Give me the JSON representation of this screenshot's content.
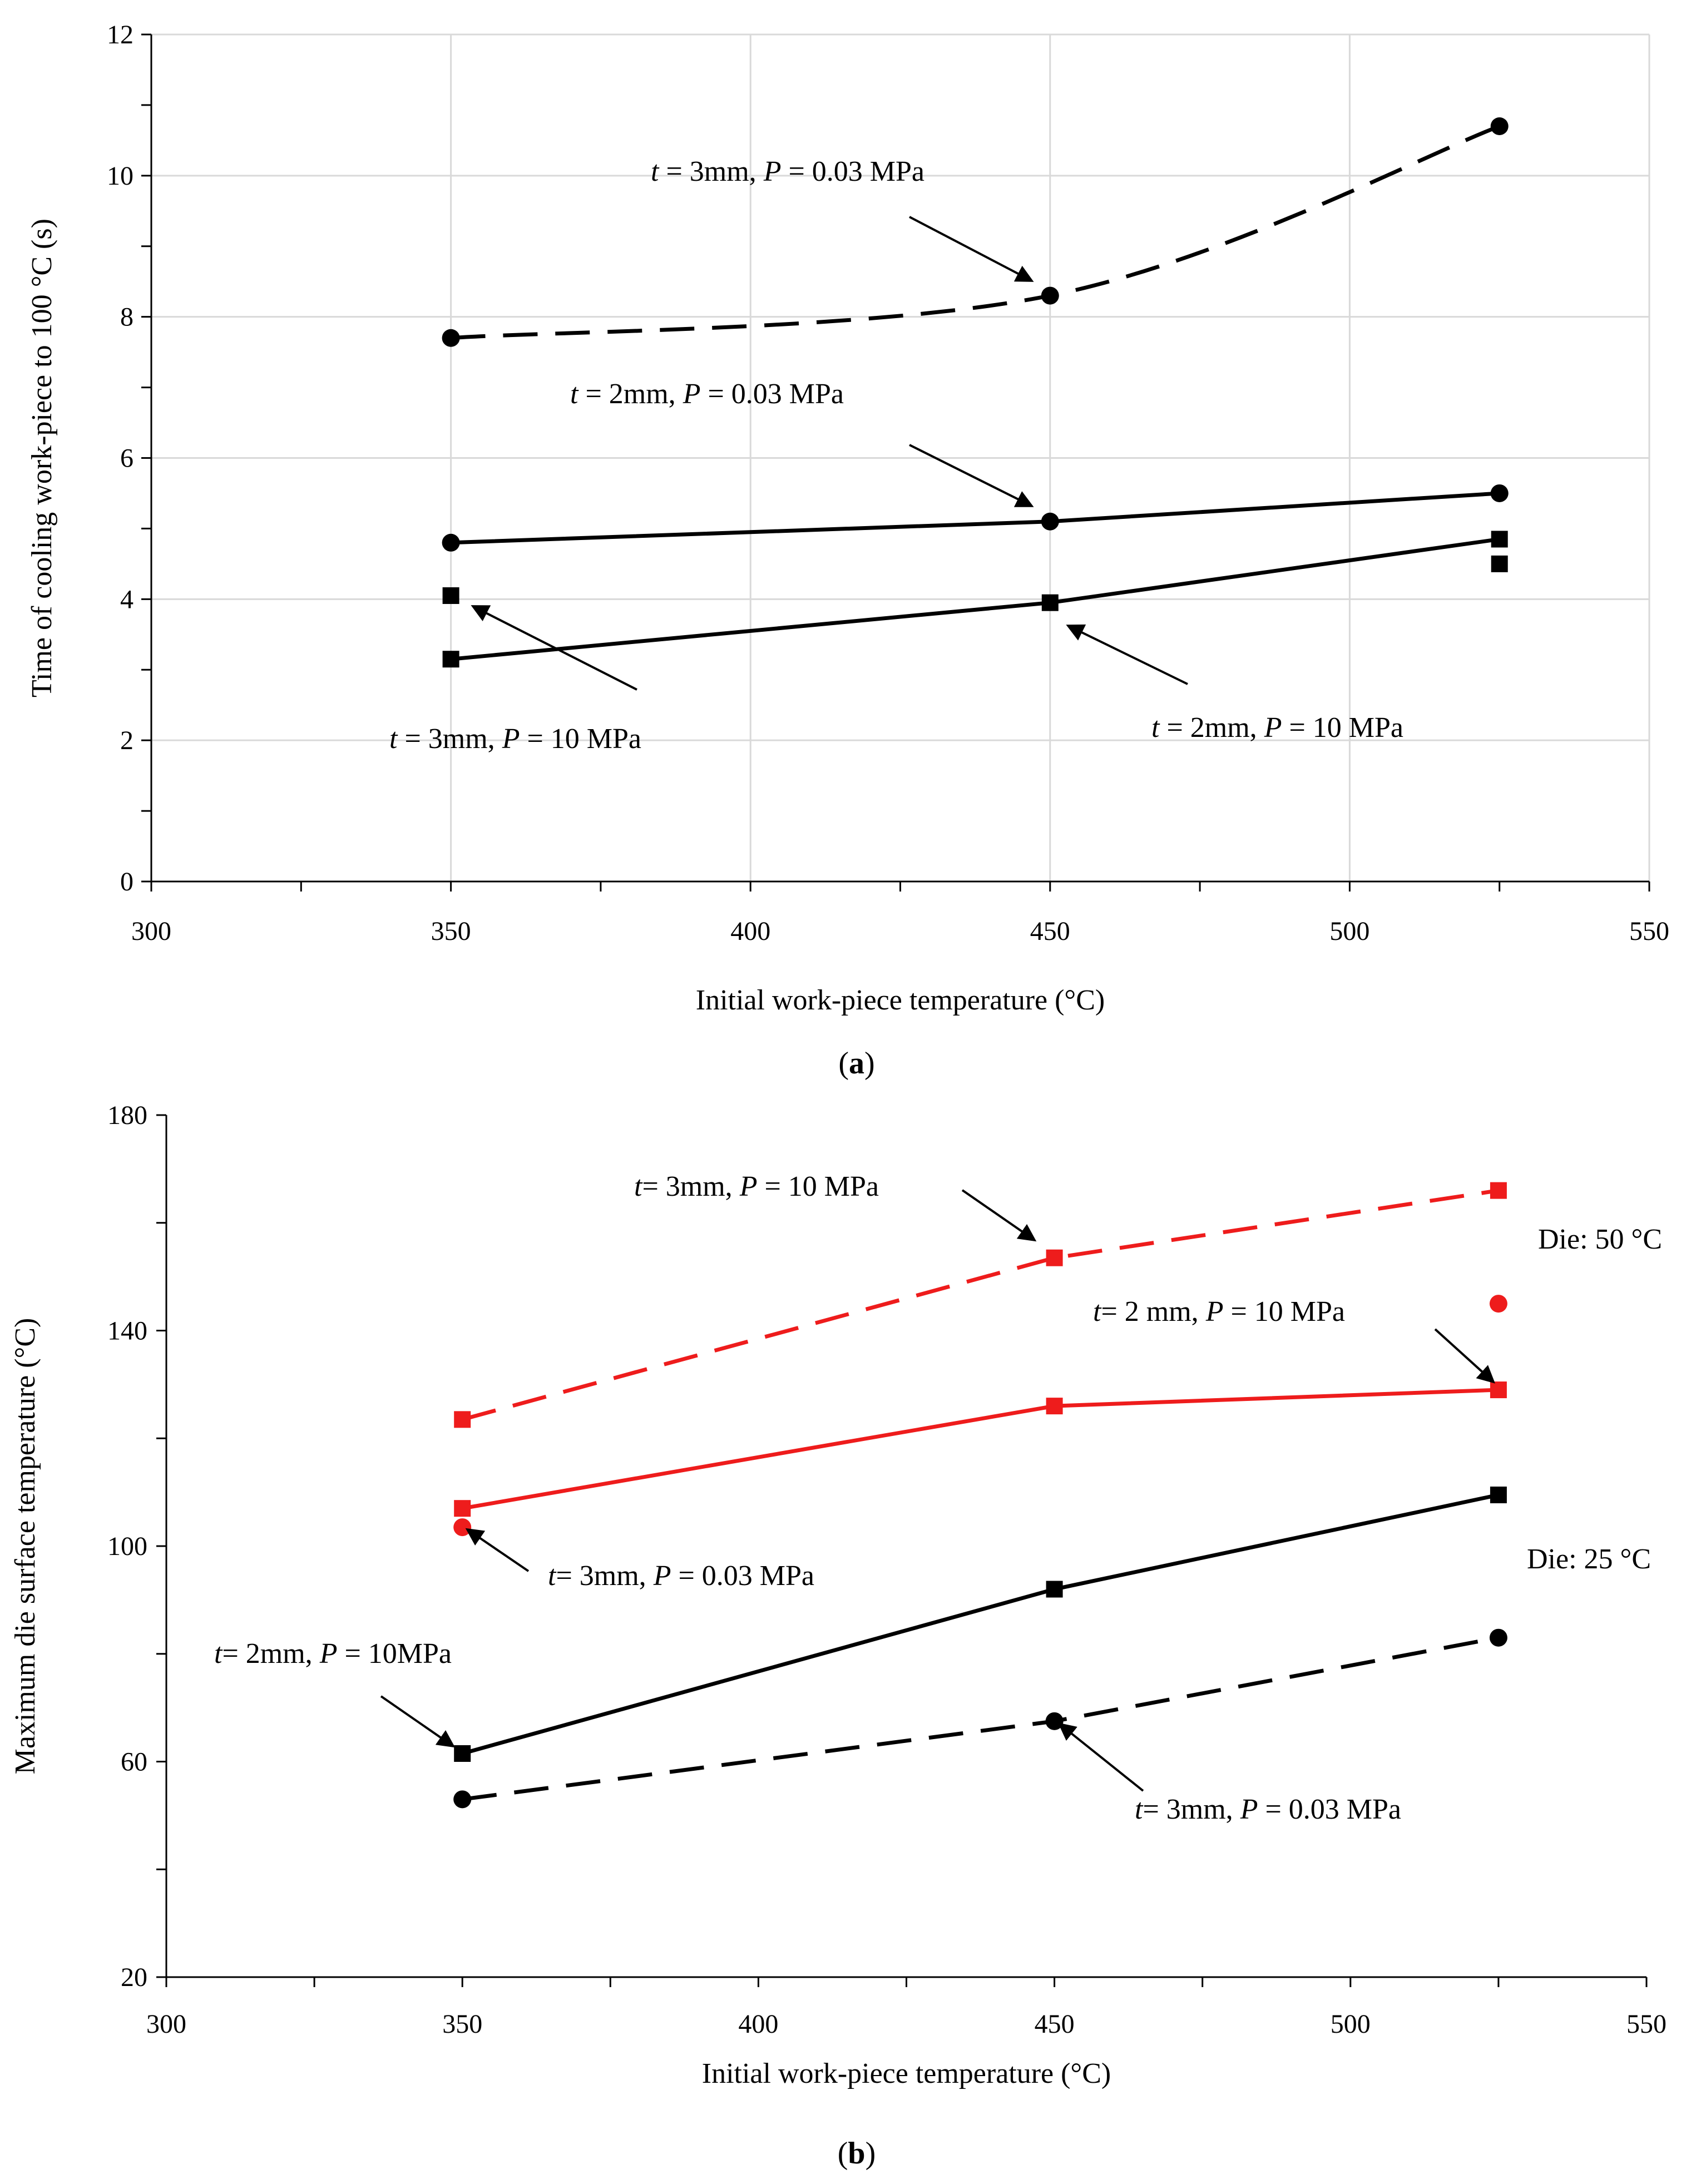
{
  "chart_data": [
    {
      "type": "line",
      "panel_label": "(a)",
      "xlabel": "Initial work-piece temperature (°C)",
      "ylabel": "Time of cooling work-piece to 100 °C (s)",
      "xlim": [
        300,
        550
      ],
      "ylim": [
        0,
        12
      ],
      "x_ticks": [
        300,
        350,
        400,
        450,
        500,
        550
      ],
      "y_ticks": [
        0,
        2,
        4,
        6,
        8,
        10,
        12
      ],
      "grid": true,
      "series": [
        {
          "name": "t = 3mm, P = 0.03 MPa",
          "style": "dashed",
          "smooth": true,
          "marker": "circle",
          "color": "#000000",
          "x": [
            350,
            450,
            525
          ],
          "y": [
            7.7,
            8.3,
            10.7
          ]
        },
        {
          "name": "t = 2mm, P = 0.03 MPa",
          "style": "solid",
          "marker": "circle",
          "color": "#000000",
          "x": [
            350,
            450,
            525
          ],
          "y": [
            4.8,
            5.1,
            5.5
          ]
        },
        {
          "name": "t = 2mm, P = 10 MPa",
          "style": "solid",
          "marker": "square",
          "color": "#000000",
          "x": [
            350,
            450,
            525
          ],
          "y": [
            3.15,
            3.95,
            4.85
          ]
        },
        {
          "name": "t = 3mm, P = 10 MPa",
          "style": "none",
          "marker": "square",
          "color": "#000000",
          "x": [
            350,
            525
          ],
          "y": [
            4.05,
            4.5
          ]
        }
      ],
      "annotations": [
        {
          "parts": [
            [
              "t",
              true
            ],
            [
              " = 3mm, ",
              false
            ],
            [
              "P",
              true
            ],
            [
              " = 0.03 MPa",
              false
            ]
          ]
        },
        {
          "parts": [
            [
              "t",
              true
            ],
            [
              " = 2mm, ",
              false
            ],
            [
              "P",
              true
            ],
            [
              " = 0.03 MPa",
              false
            ]
          ]
        },
        {
          "parts": [
            [
              "t",
              true
            ],
            [
              " = 3mm, ",
              false
            ],
            [
              "P",
              true
            ],
            [
              " = 10 MPa",
              false
            ]
          ]
        },
        {
          "parts": [
            [
              "t",
              true
            ],
            [
              " = 2mm, ",
              false
            ],
            [
              "P",
              true
            ],
            [
              " = 10 MPa",
              false
            ]
          ]
        }
      ]
    },
    {
      "type": "line",
      "panel_label": "(b)",
      "xlabel": "Initial work-piece temperature (°C)",
      "ylabel": "Maximum die surface temperature (°C)",
      "xlim": [
        300,
        550
      ],
      "ylim": [
        20,
        180
      ],
      "x_ticks": [
        300,
        350,
        400,
        450,
        500,
        550
      ],
      "y_ticks": [
        20,
        60,
        100,
        140,
        180
      ],
      "grid": false,
      "series": [
        {
          "name": "t= 3mm, P = 10 MPa (Die: 50 °C)",
          "style": "dashed",
          "marker": "square",
          "color": "#ee1c1c",
          "x": [
            350,
            450,
            525
          ],
          "y": [
            123.5,
            153.5,
            166
          ]
        },
        {
          "name": "t= 2 mm, P = 10 MPa (Die: 50 °C)",
          "style": "solid",
          "marker": "square",
          "color": "#ee1c1c",
          "x": [
            350,
            450,
            525
          ],
          "y": [
            107,
            126,
            129
          ]
        },
        {
          "name": "t= 3mm, P = 0.03 MPa (Die: 50 °C)",
          "style": "none",
          "marker": "circle",
          "color": "#ee1c1c",
          "x": [
            350,
            525
          ],
          "y": [
            103.5,
            145
          ]
        },
        {
          "name": "t= 2mm, P = 10MPa (Die: 25 °C)",
          "style": "solid",
          "marker": "square",
          "color": "#000000",
          "x": [
            350,
            450,
            525
          ],
          "y": [
            61.5,
            92,
            109.5
          ]
        },
        {
          "name": "t= 3mm, P = 0.03 MPa (Die: 25 °C)",
          "style": "dashed",
          "marker": "circle",
          "color": "#000000",
          "x": [
            350,
            450,
            525
          ],
          "y": [
            53,
            67.5,
            83
          ]
        }
      ],
      "annotations": [
        {
          "parts": [
            [
              "t",
              true
            ],
            [
              "= 3mm, ",
              false
            ],
            [
              "P",
              true
            ],
            [
              " = 10 MPa",
              false
            ]
          ]
        },
        {
          "parts": [
            [
              "t",
              true
            ],
            [
              "= 2 mm, ",
              false
            ],
            [
              "P",
              true
            ],
            [
              " = 10 MPa",
              false
            ]
          ]
        },
        {
          "parts": [
            [
              "t",
              true
            ],
            [
              "= 3mm, ",
              false
            ],
            [
              "P",
              true
            ],
            [
              " = 0.03 MPa",
              false
            ]
          ]
        },
        {
          "parts": [
            [
              "t",
              true
            ],
            [
              "= 2mm, ",
              false
            ],
            [
              "P",
              true
            ],
            [
              " = 10MPa",
              false
            ]
          ]
        },
        {
          "parts": [
            [
              "t",
              true
            ],
            [
              "= 3mm, ",
              false
            ],
            [
              "P",
              true
            ],
            [
              " = 0.03 MPa",
              false
            ]
          ]
        },
        {
          "parts": [
            [
              "Die: 50 °C",
              false
            ]
          ]
        },
        {
          "parts": [
            [
              "Die: 25 °C",
              false
            ]
          ]
        }
      ]
    }
  ]
}
